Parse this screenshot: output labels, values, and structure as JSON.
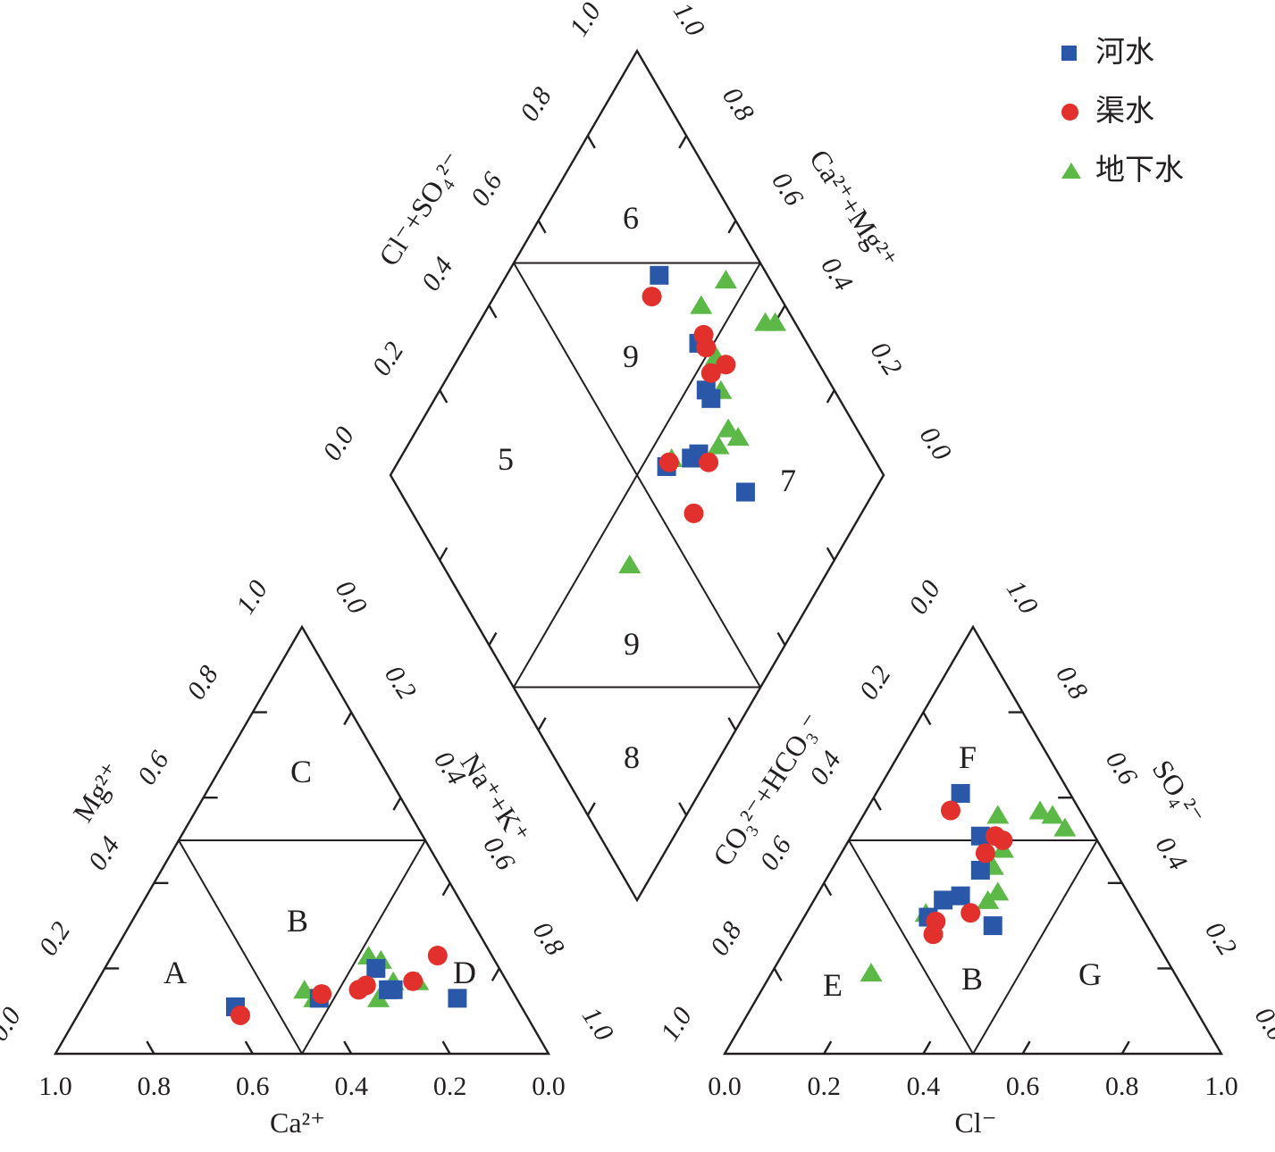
{
  "figure": {
    "kind": "Piper trilinear diagram",
    "background": "#ffffff",
    "line_color": "#231f20"
  },
  "legend": {
    "items": [
      {
        "label": "河水",
        "marker": "square",
        "color": "#2B57A8"
      },
      {
        "label": "渠水",
        "marker": "circle",
        "color": "#E2302C"
      },
      {
        "label": "地下水",
        "marker": "triangle",
        "color": "#5CB947"
      }
    ]
  },
  "chart_data": {
    "type": "scatter",
    "subtype": "piper-trilinear",
    "grid": "ternary with 0.2 ticks",
    "axes": {
      "diamond": {
        "left": {
          "title": "Cl⁻+SO₄²⁻",
          "labels": [
            "0.0",
            "0.2",
            "0.4",
            "0.6",
            "0.8",
            "1.0"
          ]
        },
        "right": {
          "title": "Ca²⁺+Mg²⁺",
          "labels": [
            "0.0",
            "0.2",
            "0.4",
            "0.6",
            "0.8",
            "1.0"
          ]
        }
      },
      "cation": {
        "bottom": {
          "title": "Ca²⁺",
          "labels": [
            "1.0",
            "0.8",
            "0.6",
            "0.4",
            "0.2",
            "0.0"
          ]
        },
        "left": {
          "title": "Mg²⁺",
          "labels": [
            "0.0",
            "0.2",
            "0.4",
            "0.6",
            "0.8",
            "1.0"
          ]
        },
        "right": {
          "title": "Na⁺+K⁺",
          "labels": [
            "0.0",
            "0.2",
            "0.4",
            "0.6",
            "0.8",
            "1.0"
          ]
        }
      },
      "anion": {
        "bottom": {
          "title": "Cl⁻",
          "labels": [
            "0.0",
            "0.2",
            "0.4",
            "0.6",
            "0.8",
            "1.0"
          ]
        },
        "left": {
          "title": "CO₃²⁻+HCO₃⁻",
          "labels": [
            "0.0",
            "0.2",
            "0.4",
            "0.6",
            "0.8",
            "1.0"
          ]
        },
        "right": {
          "title": "SO₄²⁻",
          "labels": [
            "0.0",
            "0.2",
            "0.4",
            "0.6",
            "0.8",
            "1.0"
          ]
        }
      }
    },
    "regions": {
      "diamond": [
        "6",
        "9",
        "5",
        "7",
        "9",
        "8"
      ],
      "cation": [
        "C",
        "A",
        "B",
        "D"
      ],
      "anion": [
        "F",
        "E",
        "B",
        "G"
      ]
    },
    "series": [
      {
        "name": "河水",
        "marker": "square",
        "color": "#2B57A8",
        "cation_Ca_Mg_NaK": [
          [
            0.58,
            0.11,
            0.31
          ],
          [
            0.4,
            0.13,
            0.47
          ],
          [
            0.25,
            0.2,
            0.55
          ],
          [
            0.25,
            0.15,
            0.6
          ],
          [
            0.24,
            0.15,
            0.61
          ],
          [
            0.12,
            0.13,
            0.75
          ]
        ],
        "anion_Cl_SO4_HCO3": [
          [
            0.17,
            0.61,
            0.22
          ],
          [
            0.26,
            0.51,
            0.23
          ],
          [
            0.3,
            0.43,
            0.27
          ],
          [
            0.26,
            0.36,
            0.38
          ],
          [
            0.29,
            0.37,
            0.34
          ],
          [
            0.25,
            0.32,
            0.43
          ],
          [
            0.39,
            0.3,
            0.31
          ]
        ],
        "diamond_CaMg_ClSO4": [
          [
            0.78,
            0.69
          ],
          [
            0.78,
            0.53
          ],
          [
            0.74,
            0.46
          ],
          [
            0.74,
            0.44
          ],
          [
            0.65,
            0.4
          ],
          [
            0.63,
            0.41
          ],
          [
            0.57,
            0.45
          ],
          [
            0.7,
            0.26
          ]
        ]
      },
      {
        "name": "渠水",
        "marker": "circle",
        "color": "#E2302C",
        "cation_Ca_Mg_NaK": [
          [
            0.58,
            0.09,
            0.33
          ],
          [
            0.39,
            0.14,
            0.47
          ],
          [
            0.31,
            0.15,
            0.54
          ],
          [
            0.29,
            0.16,
            0.55
          ],
          [
            0.19,
            0.17,
            0.64
          ],
          [
            0.11,
            0.23,
            0.66
          ]
        ],
        "anion_Cl_SO4_HCO3": [
          [
            0.17,
            0.57,
            0.26
          ],
          [
            0.29,
            0.51,
            0.2
          ],
          [
            0.31,
            0.5,
            0.19
          ],
          [
            0.29,
            0.47,
            0.24
          ],
          [
            0.33,
            0.33,
            0.34
          ],
          [
            0.27,
            0.31,
            0.42
          ],
          [
            0.28,
            0.28,
            0.44
          ]
        ],
        "diamond_CaMg_ClSO4": [
          [
            0.74,
            0.68
          ],
          [
            0.8,
            0.53
          ],
          [
            0.79,
            0.51
          ],
          [
            0.81,
            0.45
          ],
          [
            0.77,
            0.47
          ],
          [
            0.58,
            0.45
          ],
          [
            0.66,
            0.37
          ],
          [
            0.57,
            0.34
          ]
        ]
      },
      {
        "name": "地下水",
        "marker": "triangle",
        "color": "#5CB947",
        "cation_Ca_Mg_NaK": [
          [
            0.42,
            0.15,
            0.43
          ],
          [
            0.41,
            0.13,
            0.46
          ],
          [
            0.25,
            0.23,
            0.52
          ],
          [
            0.23,
            0.22,
            0.55
          ],
          [
            0.23,
            0.17,
            0.6
          ],
          [
            0.28,
            0.13,
            0.59
          ],
          [
            0.18,
            0.17,
            0.65
          ]
        ],
        "anion_Cl_SO4_HCO3": [
          [
            0.27,
            0.56,
            0.17
          ],
          [
            0.35,
            0.57,
            0.08
          ],
          [
            0.38,
            0.56,
            0.06
          ],
          [
            0.42,
            0.53,
            0.05
          ],
          [
            0.32,
            0.48,
            0.2
          ],
          [
            0.32,
            0.44,
            0.24
          ],
          [
            0.35,
            0.36,
            0.29
          ],
          [
            0.36,
            0.38,
            0.26
          ],
          [
            0.24,
            0.33,
            0.43
          ],
          [
            0.2,
            0.19,
            0.61
          ]
        ],
        "diamond_CaMg_ClSO4": [
          [
            0.91,
            0.55
          ],
          [
            0.83,
            0.57
          ],
          [
            0.94,
            0.42
          ],
          [
            0.96,
            0.4
          ],
          [
            0.8,
            0.48
          ],
          [
            0.77,
            0.43
          ],
          [
            0.74,
            0.37
          ],
          [
            0.75,
            0.34
          ],
          [
            0.7,
            0.37
          ],
          [
            0.59,
            0.45
          ],
          [
            0.38,
            0.41
          ]
        ]
      }
    ]
  }
}
